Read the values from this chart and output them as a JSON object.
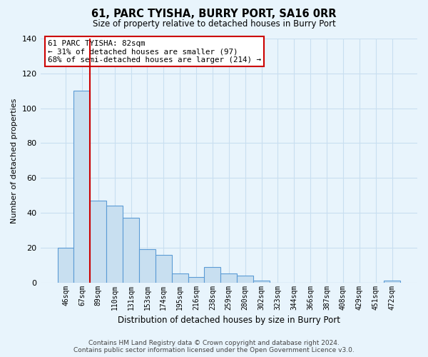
{
  "title": "61, PARC TYISHA, BURRY PORT, SA16 0RR",
  "subtitle": "Size of property relative to detached houses in Burry Port",
  "xlabel": "Distribution of detached houses by size in Burry Port",
  "ylabel": "Number of detached properties",
  "bar_labels": [
    "46sqm",
    "67sqm",
    "89sqm",
    "110sqm",
    "131sqm",
    "153sqm",
    "174sqm",
    "195sqm",
    "216sqm",
    "238sqm",
    "259sqm",
    "280sqm",
    "302sqm",
    "323sqm",
    "344sqm",
    "366sqm",
    "387sqm",
    "408sqm",
    "429sqm",
    "451sqm",
    "472sqm"
  ],
  "bar_values": [
    20,
    110,
    47,
    44,
    37,
    19,
    16,
    5,
    3,
    9,
    5,
    4,
    1,
    0,
    0,
    0,
    0,
    0,
    0,
    0,
    1
  ],
  "bar_face_color": "#c8dff0",
  "bar_edge_color": "#5b9bd5",
  "vline_x": 1.5,
  "vline_color": "#cc0000",
  "ylim": [
    0,
    140
  ],
  "yticks": [
    0,
    20,
    40,
    60,
    80,
    100,
    120,
    140
  ],
  "annotation_title": "61 PARC TYISHA: 82sqm",
  "annotation_line1": "← 31% of detached houses are smaller (97)",
  "annotation_line2": "68% of semi-detached houses are larger (214) →",
  "footer_line1": "Contains HM Land Registry data © Crown copyright and database right 2024.",
  "footer_line2": "Contains public sector information licensed under the Open Government Licence v3.0.",
  "bg_color": "#e8f4fc",
  "grid_color": "#c8dff0"
}
